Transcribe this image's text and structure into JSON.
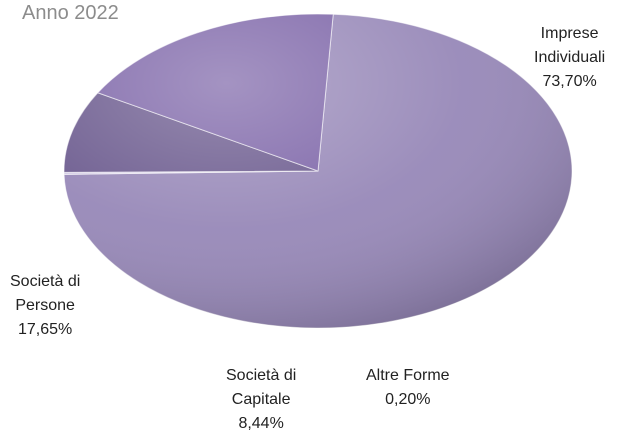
{
  "chart_data": {
    "type": "pie",
    "title": "Anno 2022",
    "slices": [
      {
        "name": "Imprese Individuali",
        "line1": "Imprese",
        "line2": "Individuali",
        "value": 73.7,
        "value_label": "73,70%",
        "color": "#9788b8"
      },
      {
        "name": "Altre Forme",
        "line1": "Altre Forme",
        "value": 0.2,
        "value_label": "0,20%",
        "color": "#cfc6e3"
      },
      {
        "name": "Società di Capitale",
        "line1": "Società di",
        "line2": "Capitale",
        "value": 8.44,
        "value_label": "8,44%",
        "color": "#6b5a8e"
      },
      {
        "name": "Società di Persone",
        "line1": "Società di",
        "line2": "Persone",
        "value": 17.65,
        "value_label": "17,65%",
        "color": "#7d65a8"
      }
    ]
  }
}
